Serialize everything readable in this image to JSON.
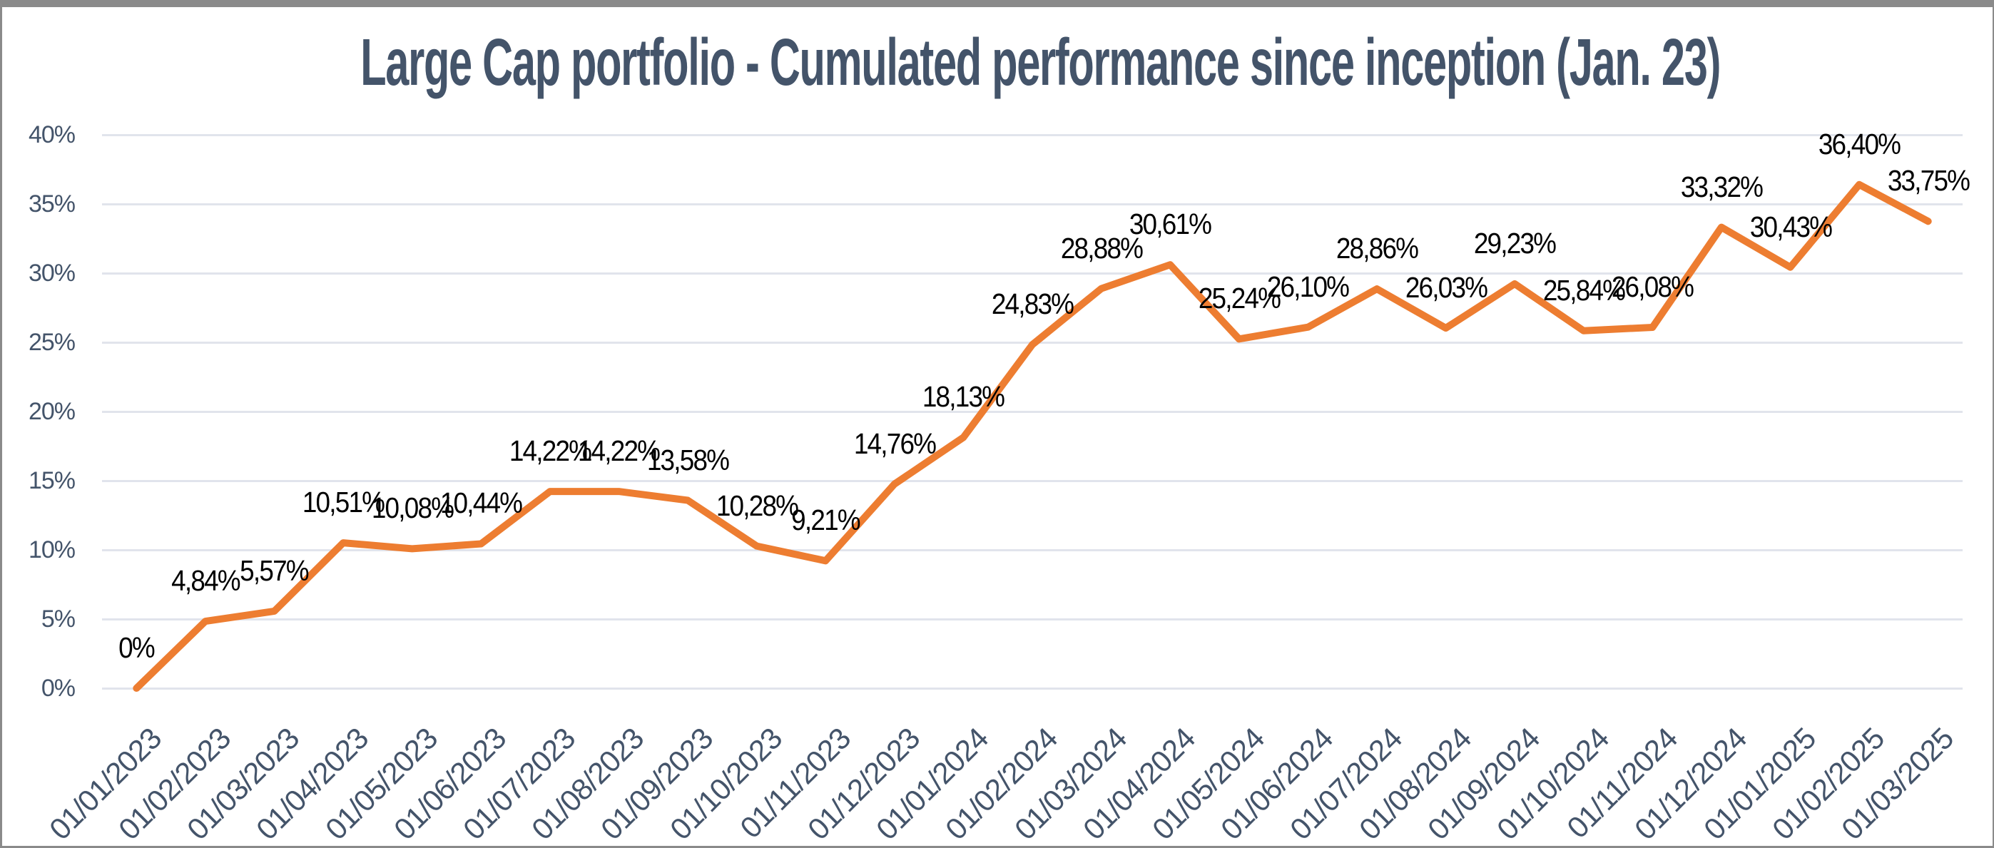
{
  "frame": {
    "border_color": "#8A8A8A",
    "background_color": "#FFFFFF"
  },
  "chart_data": {
    "type": "line",
    "title": "Large Cap portfolio - Cumulated performance since inception (Jan. 23)",
    "title_color": "#44546A",
    "categories": [
      "01/01/2023",
      "01/02/2023",
      "01/03/2023",
      "01/04/2023",
      "01/05/2023",
      "01/06/2023",
      "01/07/2023",
      "01/08/2023",
      "01/09/2023",
      "01/10/2023",
      "01/11/2023",
      "01/12/2023",
      "01/01/2024",
      "01/02/2024",
      "01/03/2024",
      "01/04/2024",
      "01/05/2024",
      "01/06/2024",
      "01/07/2024",
      "01/08/2024",
      "01/09/2024",
      "01/10/2024",
      "01/11/2024",
      "01/12/2024",
      "01/01/2025",
      "01/02/2025",
      "01/03/2025"
    ],
    "values": [
      0,
      4.84,
      5.57,
      10.51,
      10.08,
      10.44,
      14.22,
      14.22,
      13.58,
      10.28,
      9.21,
      14.76,
      18.13,
      24.83,
      28.88,
      30.61,
      25.24,
      26.1,
      28.86,
      26.03,
      29.23,
      25.84,
      26.08,
      33.32,
      30.43,
      36.4,
      33.75
    ],
    "point_labels": [
      "0%",
      "4,84%",
      "5,57%",
      "10,51%",
      "10,08%",
      "10,44%",
      "14,22%",
      "14,22%",
      "13,58%",
      "10,28%",
      "9,21%",
      "14,76%",
      "18,13%",
      "24,83%",
      "28,88%",
      "30,61%",
      "25,24%",
      "26,10%",
      "28,86%",
      "26,03%",
      "29,23%",
      "25,84%",
      "26,08%",
      "33,32%",
      "30,43%",
      "36,40%",
      "33,75%"
    ],
    "y_ticks": [
      "0%",
      "5%",
      "10%",
      "15%",
      "20%",
      "25%",
      "30%",
      "35%",
      "40%"
    ],
    "ylim": [
      0,
      40
    ],
    "y_tick_step": 5,
    "grid": true,
    "legend": "none",
    "line_color": "#ED7D31",
    "data_label_color": "#000000",
    "axis_text_color": "#44546A",
    "gridline_color": "#E1E4EC"
  }
}
